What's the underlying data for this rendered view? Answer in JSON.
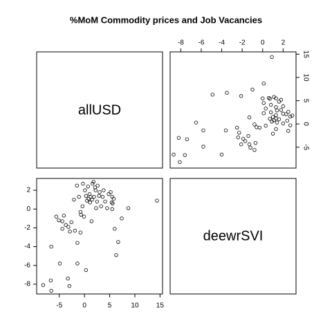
{
  "chart_data": {
    "type": "scatter",
    "title": "%MoM Commodity prices and Job Vacancies",
    "variables": [
      "allUSD",
      "deewrSVI"
    ],
    "x": [
      -8.2,
      -6.7,
      -6.6,
      -6.6,
      -4.9,
      -5.6,
      -5.1,
      -4.4,
      -4.1,
      -4.4,
      -3.7,
      -3.3,
      -3.0,
      -2.9,
      -2.6,
      -2.1,
      -1.9,
      -1.5,
      -1.1,
      -1.4,
      -0.8,
      -0.8,
      -0.7,
      -0.4,
      -0.3,
      0.1,
      -0.1,
      0.3,
      0.3,
      0.5,
      0.7,
      0.8,
      1.0,
      1.1,
      1.2,
      1.4,
      1.5,
      1.6,
      1.8,
      1.9,
      2.1,
      2.2,
      2.3,
      2.5,
      2.6,
      2.9,
      3.0,
      3.3,
      3.6,
      3.8,
      4.1,
      4.5,
      4.8,
      5.2,
      5.5,
      5.6,
      5.4,
      5.5,
      5.8,
      6.0,
      6.3,
      6.7,
      7.4,
      8.7,
      14.4,
      -1.4,
      -3.2
    ],
    "y": [
      -8.1,
      -7.6,
      -8.7,
      -4.0,
      -5.8,
      -0.8,
      -1.2,
      -1.3,
      -0.7,
      -2.1,
      -1.7,
      -7.4,
      -8.2,
      -2.4,
      -1.4,
      1.0,
      -2.3,
      2.5,
      1.3,
      -5.8,
      -0.3,
      -2.5,
      -0.6,
      0.3,
      2.7,
      2.0,
      -0.8,
      -6.5,
      1.4,
      0.9,
      2.4,
      1.1,
      1.6,
      0.7,
      1.3,
      -1.3,
      1.0,
      2.7,
      2.9,
      1.3,
      2.3,
      2.0,
      0.1,
      0.8,
      2.5,
      1.4,
      1.8,
      0.3,
      1.3,
      2.0,
      0.8,
      0.1,
      1.6,
      1.8,
      0.0,
      0.6,
      0.7,
      1.3,
      1.1,
      -2.1,
      -4.9,
      -3.5,
      -1.0,
      0.1,
      0.9,
      -3.6,
      -1.9
    ],
    "xlim": [
      -9.5,
      15.5
    ],
    "ylim": [
      -9.04,
      3.26
    ],
    "xticks": [
      -5,
      0,
      5,
      10,
      15
    ],
    "yticks": [
      -8,
      -6,
      -4,
      -2,
      0,
      2
    ]
  }
}
